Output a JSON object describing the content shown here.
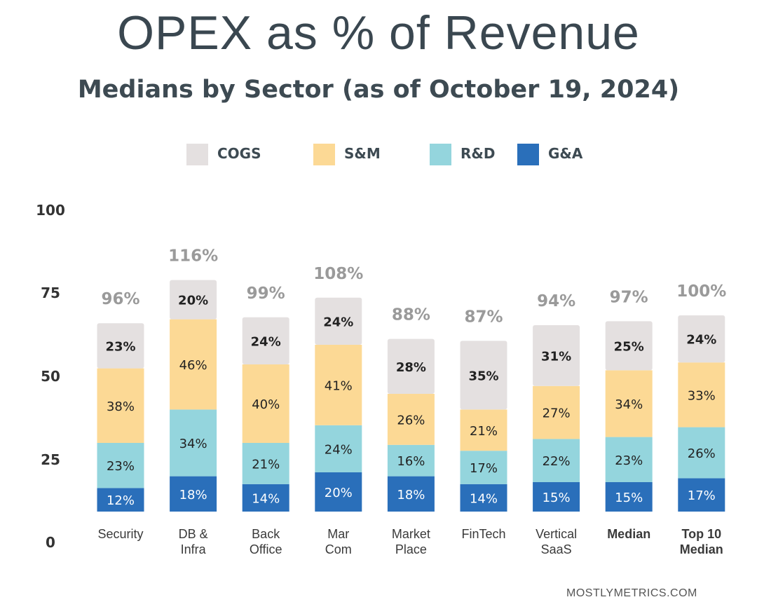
{
  "title": "OPEX as % of Revenue",
  "subtitle": "Medians by Sector (as of October 19, 2024)",
  "footer": "MOSTLYMETRICS.COM",
  "colors": {
    "COGS": "#e4e0e0",
    "S&M": "#fcd995",
    "R&D": "#94d5dd",
    "G&A": "#2a6fba"
  },
  "chart_data": {
    "type": "bar",
    "stacked": true,
    "title": "OPEX as % of Revenue",
    "subtitle": "Medians by Sector (as of October 19, 2024)",
    "legend_position": "top",
    "y_ticks": [
      "100",
      "75",
      "50",
      "25",
      "0"
    ],
    "categories": [
      {
        "lines": [
          "Security"
        ],
        "bold": false
      },
      {
        "lines": [
          "DB &",
          "Infra"
        ],
        "bold": false
      },
      {
        "lines": [
          "Back",
          "Office"
        ],
        "bold": false
      },
      {
        "lines": [
          "Mar",
          "Com"
        ],
        "bold": false
      },
      {
        "lines": [
          "Market",
          "Place"
        ],
        "bold": false
      },
      {
        "lines": [
          "FinTech"
        ],
        "bold": false
      },
      {
        "lines": [
          "Vertical",
          "SaaS"
        ],
        "bold": false
      },
      {
        "lines": [
          "Median"
        ],
        "bold": true
      },
      {
        "lines": [
          "Top 10",
          "Median"
        ],
        "bold": true
      }
    ],
    "totals": [
      "96%",
      "116%",
      "99%",
      "108%",
      "88%",
      "87%",
      "94%",
      "97%",
      "100%"
    ],
    "series": [
      {
        "name": "G&A",
        "values": [
          12,
          18,
          14,
          20,
          18,
          14,
          15,
          15,
          17
        ],
        "labels": [
          "12%",
          "18%",
          "14%",
          "20%",
          "18%",
          "14%",
          "15%",
          "15%",
          "17%"
        ]
      },
      {
        "name": "R&D",
        "values": [
          23,
          34,
          21,
          24,
          16,
          17,
          22,
          23,
          26
        ],
        "labels": [
          "23%",
          "34%",
          "21%",
          "24%",
          "16%",
          "17%",
          "22%",
          "23%",
          "26%"
        ]
      },
      {
        "name": "S&M",
        "values": [
          38,
          46,
          40,
          41,
          26,
          21,
          27,
          34,
          33
        ],
        "labels": [
          "38%",
          "46%",
          "40%",
          "41%",
          "26%",
          "21%",
          "27%",
          "34%",
          "33%"
        ]
      },
      {
        "name": "COGS",
        "values": [
          23,
          20,
          24,
          24,
          28,
          35,
          31,
          25,
          24
        ],
        "labels": [
          "23%",
          "20%",
          "24%",
          "24%",
          "28%",
          "35%",
          "31%",
          "25%",
          "24%"
        ]
      }
    ],
    "legend": [
      "COGS",
      "S&M",
      "R&D",
      "G&A"
    ]
  }
}
